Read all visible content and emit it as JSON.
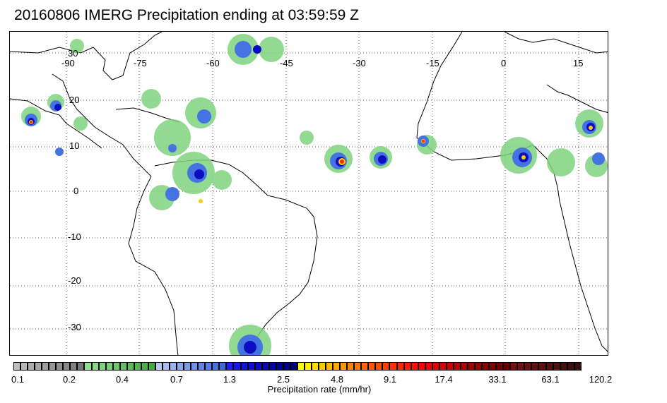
{
  "title": "20160806 IMERG Precipitation ending at 03:59:59 Z",
  "map": {
    "lon_labels": [
      "-90",
      "-75",
      "-60",
      "-45",
      "-30",
      "-15",
      "0",
      "15"
    ],
    "lat_labels": [
      "30",
      "20",
      "10",
      "0",
      "-10",
      "-20",
      "-30"
    ],
    "gridlines": "dotted",
    "coastline_color": "#000000"
  },
  "colorbar": {
    "label": "Precipitation rate (mm/hr)",
    "tick_labels": [
      "0.1",
      "0.2",
      "0.4",
      "0.7",
      "1.3",
      "2.5",
      "4.8",
      "9.1",
      "17.4",
      "33.1",
      "63.1",
      "120.2"
    ],
    "colors": [
      "#bdbdbd",
      "#b5b5b5",
      "#adadad",
      "#a6a6a6",
      "#9e9e9e",
      "#979797",
      "#8f8f8f",
      "#888888",
      "#808080",
      "#787878",
      "#8fe08f",
      "#85da85",
      "#7bd47b",
      "#72cf72",
      "#69c969",
      "#60c360",
      "#57bd57",
      "#4fb84f",
      "#47b247",
      "#3fad3f",
      "#b8c8f2",
      "#a9bdf0",
      "#9ab2ee",
      "#8ba7ec",
      "#7c9cea",
      "#6e92e8",
      "#6087e6",
      "#537de4",
      "#4673e2",
      "#3a69e0",
      "#1e1ef0",
      "#1919e4",
      "#1414d8",
      "#1010cc",
      "#0c0cc0",
      "#0808b4",
      "#0404a8",
      "#00009c",
      "#000090",
      "#000084",
      "#ffff00",
      "#ffee00",
      "#ffdd00",
      "#ffcc00",
      "#ffbb00",
      "#ffaa00",
      "#ff9900",
      "#ff8800",
      "#ff7700",
      "#ff6600",
      "#ff5a00",
      "#ff4d00",
      "#ff4000",
      "#ff3300",
      "#ff2600",
      "#ff1a00",
      "#ff0d00",
      "#ff0000",
      "#f20000",
      "#e60000",
      "#d90000",
      "#cc0000",
      "#bf0000",
      "#b30000",
      "#a60000",
      "#990000",
      "#8c0000",
      "#800000",
      "#730000",
      "#660000",
      "#7a1010",
      "#731010",
      "#6b1010",
      "#641010",
      "#5c1010",
      "#551010",
      "#4e1010",
      "#471010",
      "#401010",
      "#391010"
    ]
  }
}
